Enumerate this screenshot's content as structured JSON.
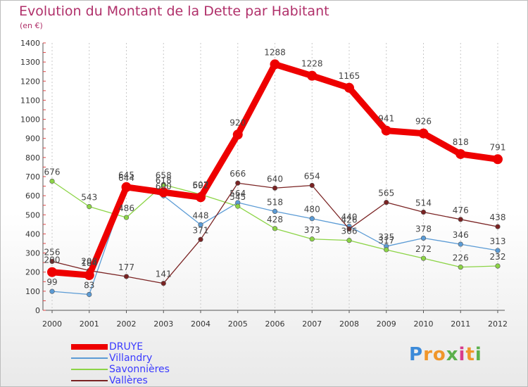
{
  "header": {
    "title": "Evolution du Montant de la Dette par Habitant",
    "subtitle": "(en €)"
  },
  "logo": {
    "text": "Proxiti",
    "letter_colors": [
      "#3b8ad9",
      "#f0962a",
      "#f0962a",
      "#5bb04c",
      "#d83c8c",
      "#f0962a",
      "#5bb04c"
    ]
  },
  "chart_data": {
    "type": "line",
    "x": [
      "2000",
      "2001",
      "2002",
      "2003",
      "2004",
      "2005",
      "2006",
      "2007",
      "2008",
      "2009",
      "2010",
      "2011",
      "2012"
    ],
    "ylim": [
      0,
      1400
    ],
    "yticks": [
      0,
      100,
      200,
      300,
      400,
      500,
      600,
      700,
      800,
      900,
      1000,
      1100,
      1200,
      1300,
      1400
    ],
    "grid": "vertical dotted",
    "legend_position": "bottom-left",
    "series": [
      {
        "name": "DRUYE",
        "color": "#ee0000",
        "emphasis": true,
        "values": [
          200,
          184,
          645,
          618,
          592,
          920,
          1288,
          1228,
          1165,
          941,
          926,
          818,
          791
        ],
        "labels": [
          "200",
          "184",
          "645",
          "618",
          "592",
          "920",
          "1288",
          "1228",
          "1165",
          "941",
          "926",
          "818",
          "791"
        ]
      },
      {
        "name": "Villandry",
        "color": "#5b9bd5",
        "emphasis": false,
        "values": [
          99,
          83,
          644,
          600,
          448,
          564,
          518,
          480,
          440,
          335,
          378,
          346,
          313
        ],
        "labels": [
          "99",
          "83",
          "644",
          "600",
          "448",
          "564",
          "518",
          "480",
          "440",
          "335",
          "378",
          "346",
          "313"
        ]
      },
      {
        "name": "Savonnières",
        "color": "#8cd446",
        "emphasis": false,
        "values": [
          676,
          543,
          486,
          658,
          607,
          545,
          428,
          373,
          366,
          317,
          272,
          226,
          232
        ],
        "labels": [
          "676",
          "543",
          "486",
          "658",
          "607",
          "545",
          "428",
          "373",
          "366",
          "317",
          "272",
          "226",
          "232"
        ]
      },
      {
        "name": "Vallères",
        "color": "#7a2323",
        "emphasis": false,
        "values": [
          256,
          208,
          177,
          141,
          371,
          666,
          640,
          654,
          426,
          565,
          514,
          476,
          438
        ],
        "labels": [
          "256",
          "208",
          "177",
          "141",
          "371",
          "666",
          "640",
          "654",
          "426",
          "565",
          "514",
          "476",
          "438"
        ]
      }
    ]
  }
}
